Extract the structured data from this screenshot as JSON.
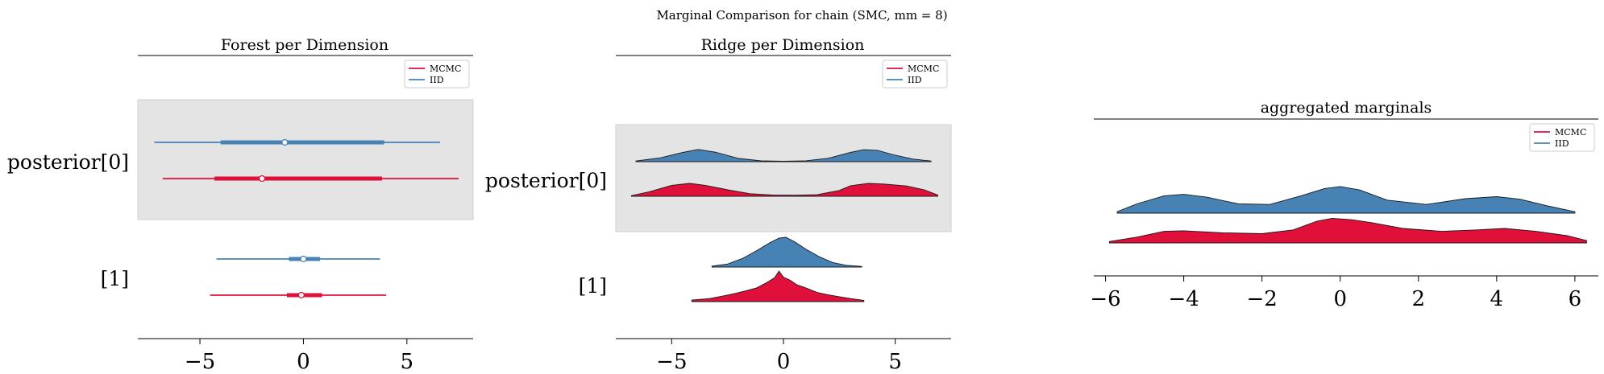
{
  "suptitle": "Marginal Comparison for chain (SMC, mm = 8)",
  "colors": {
    "MCMC": "#e0103a",
    "IID": "#4682b4",
    "band": "#e4e4e4",
    "outline": "#1a1a1a"
  },
  "legend": [
    {
      "label": "MCMC",
      "color": "#e0103a"
    },
    {
      "label": "IID",
      "color": "#4682b4"
    }
  ],
  "chart_data": [
    {
      "type": "forest",
      "title": "Forest per Dimension",
      "xlim": [
        -8,
        8.2
      ],
      "xticks": [
        "−5",
        "0",
        "5"
      ],
      "xtick_values": [
        -5,
        0,
        5
      ],
      "ylabels": [
        "posterior[0]",
        "[1]"
      ],
      "legend_position": "top-right",
      "rows": [
        {
          "dim": "posterior[0]",
          "series": "IID",
          "min": -7.2,
          "q25": -4.0,
          "median": -0.9,
          "q75": 3.9,
          "max": 6.6
        },
        {
          "dim": "posterior[0]",
          "series": "MCMC",
          "min": -6.8,
          "q25": -4.3,
          "median": -2.0,
          "q75": 3.8,
          "max": 7.5
        },
        {
          "dim": "[1]",
          "series": "IID",
          "min": -4.2,
          "q25": -0.7,
          "median": 0.0,
          "q75": 0.8,
          "max": 3.7
        },
        {
          "dim": "[1]",
          "series": "MCMC",
          "min": -4.5,
          "q25": -0.8,
          "median": -0.1,
          "q75": 0.9,
          "max": 4.0
        }
      ]
    },
    {
      "type": "ridge",
      "title": "Ridge per Dimension",
      "xlim": [
        -7.5,
        7.5
      ],
      "xticks": [
        "−5",
        "0",
        "5"
      ],
      "xtick_values": [
        -5,
        0,
        5
      ],
      "ylabels": [
        "posterior[0]",
        "[1]"
      ],
      "legend_position": "top-right",
      "ridges": [
        {
          "dim": "posterior[0]",
          "series": "IID",
          "x": [
            -6.6,
            -5.5,
            -4.5,
            -3.8,
            -3.0,
            -2.0,
            -1.0,
            0.0,
            1.0,
            2.0,
            3.0,
            3.6,
            4.2,
            5.0,
            5.8,
            6.6
          ],
          "y": [
            0.05,
            0.3,
            0.72,
            0.95,
            0.72,
            0.25,
            0.06,
            0.04,
            0.07,
            0.26,
            0.72,
            0.93,
            0.88,
            0.5,
            0.2,
            0.05
          ]
        },
        {
          "dim": "posterior[0]",
          "series": "MCMC",
          "x": [
            -6.8,
            -6.0,
            -5.0,
            -4.2,
            -3.5,
            -2.5,
            -1.5,
            -0.5,
            0.5,
            1.5,
            2.5,
            3.0,
            3.8,
            4.5,
            5.5,
            6.3,
            6.9
          ],
          "y": [
            0.05,
            0.35,
            0.85,
            1.0,
            0.85,
            0.5,
            0.2,
            0.1,
            0.08,
            0.12,
            0.45,
            0.82,
            1.0,
            0.95,
            0.8,
            0.5,
            0.1
          ]
        },
        {
          "dim": "[1]",
          "series": "IID",
          "x": [
            -3.2,
            -2.5,
            -1.8,
            -1.2,
            -0.6,
            -0.2,
            0.1,
            0.5,
            1.0,
            1.6,
            2.2,
            2.8,
            3.5
          ],
          "y": [
            0.03,
            0.1,
            0.3,
            0.55,
            0.82,
            0.97,
            1.0,
            0.85,
            0.6,
            0.35,
            0.15,
            0.06,
            0.02
          ]
        },
        {
          "dim": "[1]",
          "series": "MCMC",
          "x": [
            -4.1,
            -3.3,
            -2.6,
            -2.1,
            -1.7,
            -1.2,
            -0.8,
            -0.4,
            -0.2,
            0.0,
            0.3,
            0.6,
            1.0,
            1.5,
            2.0,
            2.5,
            3.0,
            3.6
          ],
          "y": [
            0.05,
            0.1,
            0.2,
            0.28,
            0.35,
            0.45,
            0.6,
            0.78,
            1.0,
            0.8,
            0.7,
            0.55,
            0.45,
            0.3,
            0.22,
            0.16,
            0.1,
            0.04
          ]
        }
      ]
    },
    {
      "type": "area",
      "title": "aggregated marginals",
      "xlim": [
        -6.3,
        6.6
      ],
      "xticks": [
        "−6",
        "−4",
        "−2",
        "0",
        "2",
        "4",
        "6"
      ],
      "xtick_values": [
        -6,
        -4,
        -2,
        0,
        2,
        4,
        6
      ],
      "legend_position": "top-right",
      "series": [
        {
          "name": "IID",
          "x": [
            -5.7,
            -5.2,
            -4.5,
            -4.0,
            -3.4,
            -2.6,
            -1.8,
            -1.0,
            -0.4,
            0.0,
            0.5,
            1.2,
            2.2,
            3.2,
            4.0,
            4.6,
            5.3,
            6.0
          ],
          "y": [
            0.05,
            0.32,
            0.6,
            0.65,
            0.55,
            0.32,
            0.3,
            0.6,
            0.85,
            0.92,
            0.8,
            0.45,
            0.3,
            0.5,
            0.57,
            0.48,
            0.25,
            0.05
          ]
        },
        {
          "name": "MCMC",
          "x": [
            -5.9,
            -5.2,
            -4.5,
            -4.0,
            -3.0,
            -2.0,
            -1.2,
            -0.6,
            -0.2,
            0.3,
            0.8,
            1.6,
            2.6,
            3.5,
            4.2,
            5.0,
            5.8,
            6.3
          ],
          "y": [
            0.05,
            0.2,
            0.4,
            0.42,
            0.35,
            0.32,
            0.45,
            0.75,
            0.85,
            0.8,
            0.7,
            0.5,
            0.4,
            0.45,
            0.5,
            0.4,
            0.25,
            0.08
          ]
        }
      ]
    }
  ]
}
